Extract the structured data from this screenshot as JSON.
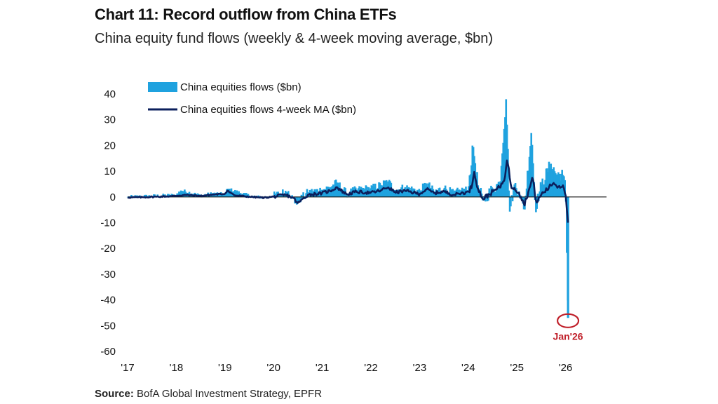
{
  "title": "Chart 11: Record outflow from China ETFs",
  "subtitle": "China equity fund flows (weekly & 4-week moving average, $bn)",
  "source_label": "Source:",
  "source_text": " BofA Global Investment Strategy, EPFR",
  "chart_data": {
    "type": "bar+line",
    "ylim": [
      -60,
      40
    ],
    "yticks": [
      40,
      30,
      20,
      10,
      0,
      -10,
      -20,
      -30,
      -40,
      -50,
      -60
    ],
    "ytick_labels": [
      "40",
      "30",
      "20",
      "10",
      "0",
      "-10",
      "-20",
      "-30",
      "-40",
      "-50",
      "-60"
    ],
    "xticks": [
      2017,
      2018,
      2019,
      2020,
      2021,
      2022,
      2023,
      2024,
      2025,
      2026
    ],
    "xtick_labels": [
      "'17",
      "'18",
      "'19",
      "'20",
      "'21",
      "'22",
      "'23",
      "'24",
      "'25",
      "'26"
    ],
    "x_range": [
      2017.0,
      2026.95
    ],
    "colors": {
      "bars": "#1fa2df",
      "line": "#0b1f5c",
      "annotation": "#c0202a"
    },
    "series": [
      {
        "name": "China equities flows ($bn)",
        "kind": "bar"
      },
      {
        "name": "China equities flows 4-week MA ($bn)",
        "kind": "line"
      }
    ],
    "flows": {
      "start": 2017.0,
      "step": 0.0192,
      "points": [
        [
          2017.0,
          0.0
        ],
        [
          2017.5,
          0.4
        ],
        [
          2018.0,
          0.8
        ],
        [
          2018.1,
          2.6
        ],
        [
          2018.5,
          0.6
        ],
        [
          2018.8,
          1.5
        ],
        [
          2019.0,
          0.9
        ],
        [
          2019.05,
          3.2
        ],
        [
          2019.5,
          0.5
        ],
        [
          2019.8,
          -0.3
        ],
        [
          2020.0,
          0.5
        ],
        [
          2020.3,
          2.4
        ],
        [
          2020.45,
          -2.5
        ],
        [
          2020.7,
          1.8
        ],
        [
          2021.0,
          2.8
        ],
        [
          2021.2,
          4.2
        ],
        [
          2021.3,
          5.6
        ],
        [
          2021.5,
          1.4
        ],
        [
          2021.7,
          2.8
        ],
        [
          2022.0,
          3.4
        ],
        [
          2022.2,
          4.6
        ],
        [
          2022.35,
          6.2
        ],
        [
          2022.5,
          2.5
        ],
        [
          2022.7,
          3.8
        ],
        [
          2023.0,
          2.2
        ],
        [
          2023.15,
          5.4
        ],
        [
          2023.3,
          2.0
        ],
        [
          2023.5,
          3.6
        ],
        [
          2023.7,
          1.4
        ],
        [
          2023.85,
          2.6
        ],
        [
          2024.0,
          2.8
        ],
        [
          2024.1,
          20.0
        ],
        [
          2024.2,
          4.5
        ],
        [
          2024.3,
          -1.6
        ],
        [
          2024.5,
          3.2
        ],
        [
          2024.65,
          5.5
        ],
        [
          2024.78,
          39.0
        ],
        [
          2024.85,
          -6.0
        ],
        [
          2024.95,
          5.0
        ],
        [
          2025.05,
          2.0
        ],
        [
          2025.15,
          -5.5
        ],
        [
          2025.3,
          26.0
        ],
        [
          2025.38,
          -4.5
        ],
        [
          2025.5,
          4.5
        ],
        [
          2025.7,
          13.0
        ],
        [
          2025.8,
          9.0
        ],
        [
          2025.95,
          8.5
        ],
        [
          2026.0,
          3.0
        ],
        [
          2026.05,
          -47.0
        ]
      ]
    },
    "moving_average": {
      "points": [
        [
          2017.0,
          -0.2
        ],
        [
          2017.3,
          -0.1
        ],
        [
          2017.6,
          0.1
        ],
        [
          2017.9,
          0.3
        ],
        [
          2018.2,
          0.8
        ],
        [
          2018.5,
          0.4
        ],
        [
          2018.8,
          1.0
        ],
        [
          2019.0,
          1.2
        ],
        [
          2019.05,
          2.5
        ],
        [
          2019.2,
          0.6
        ],
        [
          2019.5,
          0.1
        ],
        [
          2019.8,
          -0.3
        ],
        [
          2020.0,
          0.1
        ],
        [
          2020.25,
          0.8
        ],
        [
          2020.4,
          -0.3
        ],
        [
          2020.5,
          -2.5
        ],
        [
          2020.7,
          0.8
        ],
        [
          2021.0,
          1.5
        ],
        [
          2021.2,
          2.6
        ],
        [
          2021.3,
          3.8
        ],
        [
          2021.5,
          1.0
        ],
        [
          2021.7,
          2.0
        ],
        [
          2022.0,
          1.6
        ],
        [
          2022.2,
          2.5
        ],
        [
          2022.35,
          3.8
        ],
        [
          2022.5,
          1.8
        ],
        [
          2022.7,
          2.4
        ],
        [
          2023.0,
          1.2
        ],
        [
          2023.15,
          3.0
        ],
        [
          2023.3,
          1.5
        ],
        [
          2023.5,
          2.1
        ],
        [
          2023.7,
          0.8
        ],
        [
          2023.85,
          1.5
        ],
        [
          2024.0,
          1.8
        ],
        [
          2024.08,
          4.5
        ],
        [
          2024.12,
          10.0
        ],
        [
          2024.2,
          3.2
        ],
        [
          2024.3,
          -0.8
        ],
        [
          2024.5,
          2.0
        ],
        [
          2024.65,
          3.8
        ],
        [
          2024.76,
          8.0
        ],
        [
          2024.8,
          15.0
        ],
        [
          2024.88,
          4.0
        ],
        [
          2024.95,
          3.5
        ],
        [
          2025.05,
          1.5
        ],
        [
          2025.15,
          -3.0
        ],
        [
          2025.28,
          4.5
        ],
        [
          2025.32,
          8.0
        ],
        [
          2025.4,
          -2.5
        ],
        [
          2025.5,
          1.0
        ],
        [
          2025.65,
          3.5
        ],
        [
          2025.75,
          5.5
        ],
        [
          2025.85,
          4.0
        ],
        [
          2025.95,
          4.5
        ],
        [
          2026.0,
          1.5
        ],
        [
          2026.05,
          -10.0
        ]
      ]
    },
    "legend": {
      "position": "top-left"
    },
    "annotation": {
      "label": "Jan'26",
      "x": 2026.05,
      "y": -47
    }
  }
}
